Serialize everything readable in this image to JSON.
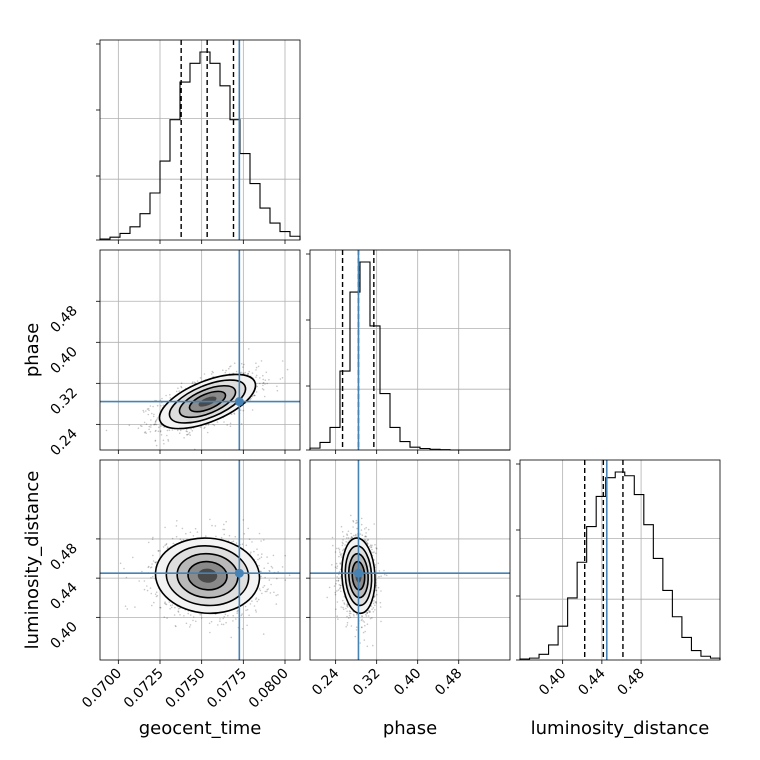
{
  "chart_data": {
    "type": "corner",
    "parameters": [
      {
        "name": "geocent_time",
        "axis_label": "geocent_time",
        "range": [
          0.0689,
          0.0809
        ],
        "ticks": [
          0.07,
          0.0725,
          0.075,
          0.0775,
          0.08
        ],
        "tick_labels": [
          "0.0700",
          "0.0725",
          "0.0750",
          "0.0775",
          "0.0800"
        ],
        "truth": 0.07726,
        "quantiles": [
          0.07377,
          0.07533,
          0.07691
        ]
      },
      {
        "name": "phase",
        "axis_label": "phase",
        "range": [
          0.19,
          0.58
        ],
        "ticks": [
          0.24,
          0.32,
          0.4,
          0.48
        ],
        "tick_labels": [
          "0.24",
          "0.32",
          "0.40",
          "0.48"
        ],
        "truth": 0.2845,
        "quantiles": [
          0.2535,
          0.2845,
          0.3145
        ]
      },
      {
        "name": "luminosity_distance",
        "axis_label": "luminosity_distance",
        "range": [
          0.3565,
          0.5605
        ],
        "ticks": [
          0.4,
          0.44,
          0.48
        ],
        "tick_labels": [
          "0.40",
          "0.44",
          "0.48"
        ],
        "truth": 0.445,
        "quantiles": [
          0.4225,
          0.4415,
          0.4615
        ]
      }
    ],
    "histograms": [
      [
        0.005,
        0.015,
        0.035,
        0.07,
        0.14,
        0.25,
        0.42,
        0.64,
        0.84,
        0.94,
        1.0,
        0.94,
        0.82,
        0.64,
        0.46,
        0.3,
        0.17,
        0.09,
        0.045,
        0.02
      ],
      [
        0.01,
        0.04,
        0.12,
        0.42,
        0.84,
        1.0,
        0.66,
        0.3,
        0.12,
        0.045,
        0.015,
        0.008,
        0.004,
        0.002,
        0.0,
        0.0,
        0.0,
        0.0,
        0.0,
        0.0
      ],
      [
        0.005,
        0.01,
        0.03,
        0.08,
        0.18,
        0.33,
        0.52,
        0.71,
        0.87,
        0.97,
        1.0,
        0.98,
        0.88,
        0.72,
        0.54,
        0.37,
        0.23,
        0.12,
        0.05,
        0.02,
        0.01
      ]
    ],
    "pairs": [
      {
        "x": "geocent_time",
        "y": "phase",
        "center": [
          0.07535,
          0.2845
        ],
        "sd": [
          0.0012,
          0.022
        ],
        "corr": 0.6
      },
      {
        "x": "geocent_time",
        "y": "luminosity_distance",
        "center": [
          0.07535,
          0.4425
        ],
        "sd": [
          0.0013,
          0.016
        ],
        "corr": -0.05
      },
      {
        "x": "phase",
        "y": "luminosity_distance",
        "center": [
          0.2845,
          0.4425
        ],
        "sd": [
          0.0135,
          0.016
        ],
        "corr": -0.1
      }
    ],
    "truth_color": "#4682b4",
    "grid": true
  }
}
